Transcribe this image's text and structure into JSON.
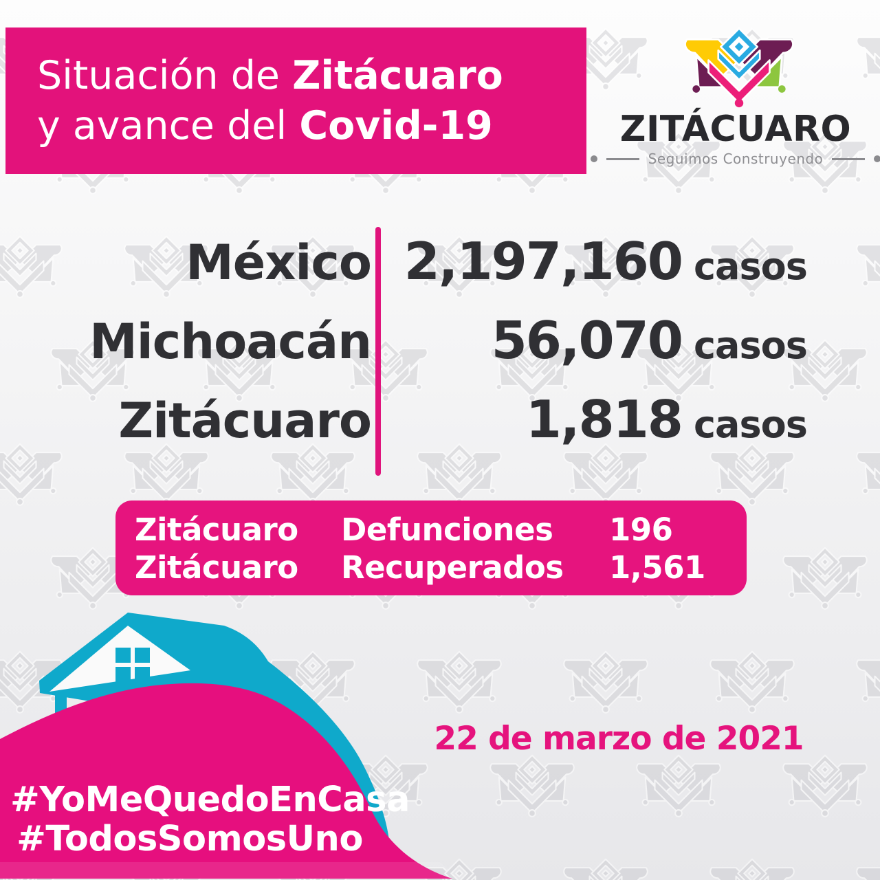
{
  "banner": {
    "line1_regular": "Situación de ",
    "line1_bold": "Zitácuaro",
    "line2_regular": "y avance del ",
    "line2_bold": "Covid-19"
  },
  "logo": {
    "name": "ZITÁCUARO",
    "tagline": "Seguimos Construyendo"
  },
  "stats": {
    "rows": [
      {
        "label": "México",
        "value": "2,197,160",
        "unit": "casos"
      },
      {
        "label": "Michoacán",
        "value": "56,070",
        "unit": "casos"
      },
      {
        "label": "Zitácuaro",
        "value": "1,818",
        "unit": "casos"
      }
    ]
  },
  "summary_box": {
    "rows": [
      {
        "place": "Zitácuaro",
        "metric": "Defunciones",
        "value": "196"
      },
      {
        "place": "Zitácuaro",
        "metric": "Recuperados",
        "value": "1,561"
      }
    ]
  },
  "date": "22 de marzo de 2021",
  "hashtags": [
    "#YoMeQuedoEnCasa",
    "#TodosSomosUno"
  ],
  "colors": {
    "accent_pink": "#e3127b",
    "box_pink": "#e6147e",
    "blob_pink": "#e60f7e",
    "cyan": "#0fa9cb",
    "dark_text": "#303034",
    "logo_black": "#29292d",
    "tagline_gray": "#8e8e92",
    "watermark_gray": "#cdcdd1",
    "emblem_cyan": "#29abe2",
    "emblem_yellow": "#ffcb05",
    "emblem_magenta": "#ec1e79",
    "emblem_purple": "#6d1d53",
    "emblem_green": "#8dc63f"
  },
  "icons": {
    "emblem": "monarch-butterfly-emblem",
    "watermark": "monarch-butterfly-watermark",
    "illustration": "stay-home-house"
  }
}
